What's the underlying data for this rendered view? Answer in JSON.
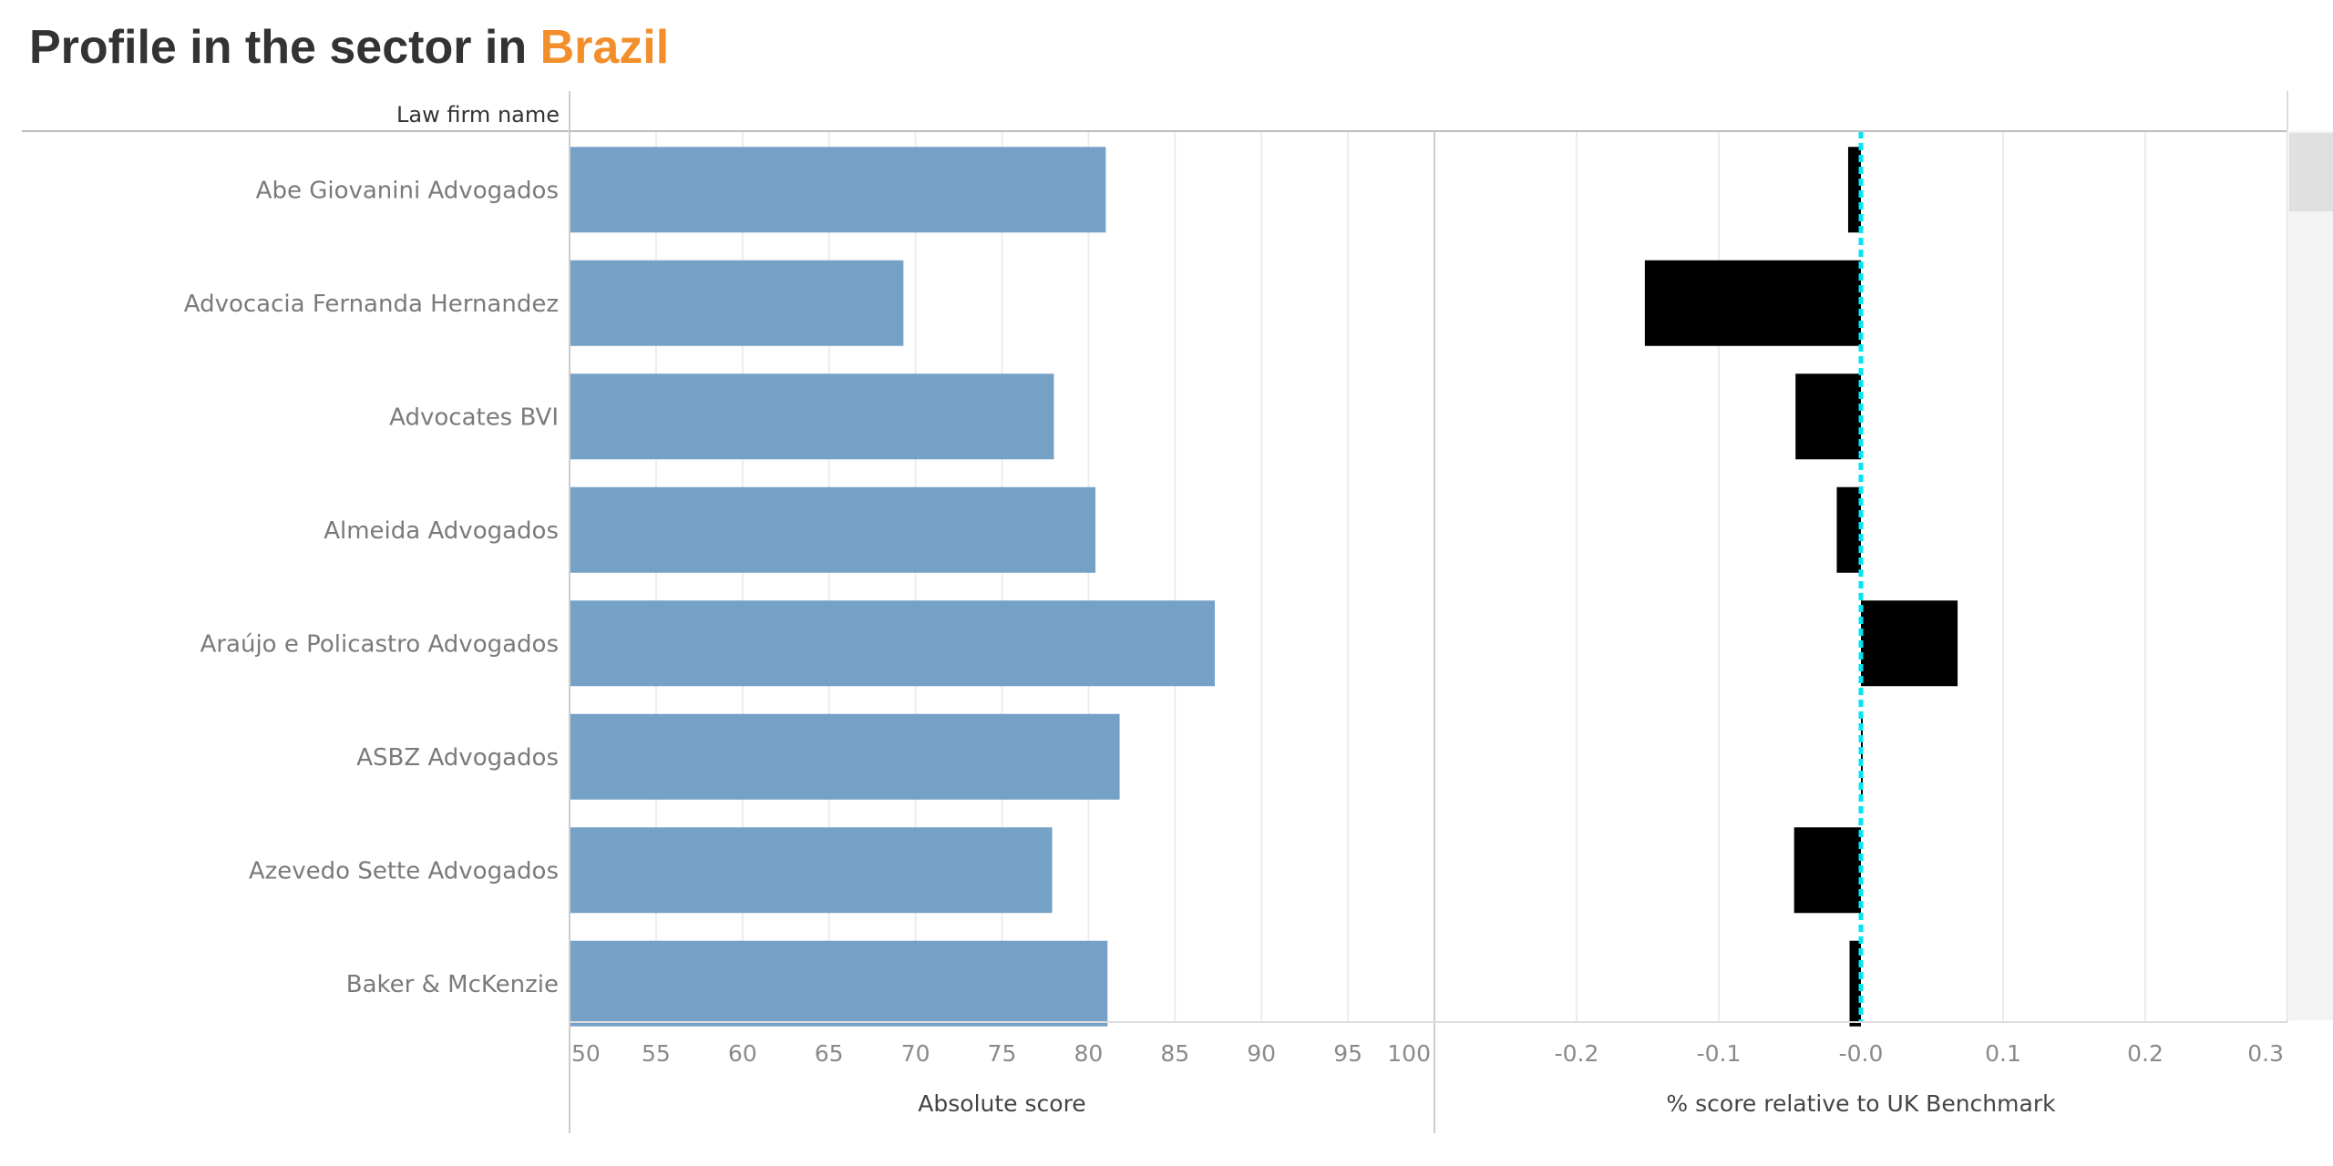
{
  "title": {
    "prefix": "Profile in the sector in ",
    "country": "Brazil"
  },
  "colors": {
    "absolute_bar": "#75a1c7",
    "relative_bar": "#000000",
    "benchmark_line": "#00e5f5",
    "title_accent": "#f28e2b",
    "title_text": "#333333"
  },
  "row_header": "Law firm name",
  "chart_data": [
    {
      "type": "bar",
      "orientation": "horizontal",
      "categories": [
        "Abe Giovanini Advogados",
        "Advocacia Fernanda Hernandez",
        "Advocates BVI",
        "Almeida Advogados",
        "Araújo e Policastro Advogados",
        "ASBZ Advogados",
        "Azevedo Sette Advogados",
        "Baker & McKenzie"
      ],
      "values": [
        81,
        69.3,
        78,
        80.4,
        87.3,
        81.8,
        77.9,
        81.1
      ],
      "xlabel": "Absolute score",
      "xlim": [
        50,
        100
      ],
      "xticks": [
        "50",
        "55",
        "60",
        "65",
        "70",
        "75",
        "80",
        "85",
        "90",
        "95",
        "100"
      ],
      "grid": "vertical"
    },
    {
      "type": "bar",
      "orientation": "horizontal",
      "categories": [
        "Abe Giovanini Advogados",
        "Advocacia Fernanda Hernandez",
        "Advocates BVI",
        "Almeida Advogados",
        "Araújo e Policastro Advogados",
        "ASBZ Advogados",
        "Azevedo Sette Advogados",
        "Baker & McKenzie"
      ],
      "values": [
        -0.009,
        -0.152,
        -0.046,
        -0.017,
        0.068,
        0.001,
        -0.047,
        -0.008
      ],
      "xlabel": "% score relative to UK Benchmark",
      "xlim": [
        -0.3,
        0.3
      ],
      "xticks": [
        "-0.2",
        "-0.1",
        "-0.0",
        "0.1",
        "0.2",
        "0.3"
      ],
      "reference_line": 0,
      "grid": "vertical"
    }
  ]
}
